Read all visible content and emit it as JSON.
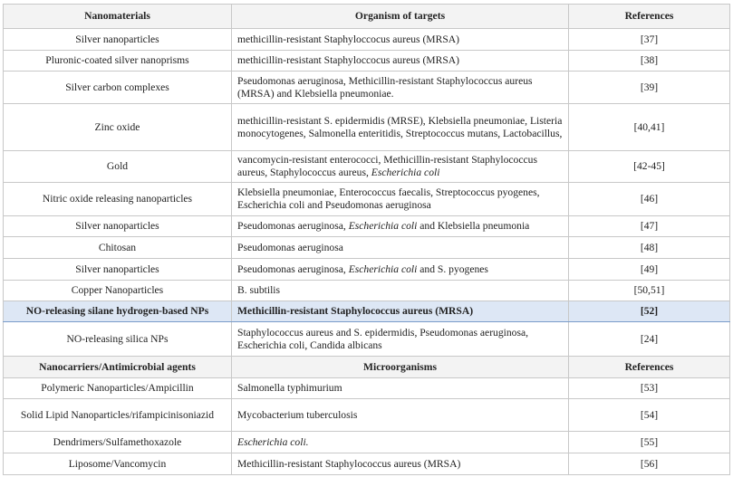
{
  "table": {
    "header": [
      "Nanomaterials",
      "Organism of targets",
      "References"
    ],
    "rows": [
      [
        "Silver nanoparticles",
        "methicillin-resistant Staphyloccocus aureus (MRSA)",
        "[37]"
      ],
      [
        "Pluronic-coated silver nanoprisms",
        "methicillin-resistant Staphyloccocus aureus (MRSA)",
        "[38]"
      ],
      [
        "Silver carbon complexes",
        "Pseudomonas aeruginosa, Methicillin-resistant Staphylococ­cus aureus (MRSA) and Klebsiella pneumoniae.",
        "[39]"
      ],
      [
        "Zinc oxide",
        "methicillin-resistant S. epidermidis (MRSE), Klebsiella pneumoni­ae, Listeria monocytogenes, Salmonella enteritidis, Streptococcus mutans, Lactobacillus,",
        "[40,41]"
      ],
      [
        "Gold",
        {
          "parts": [
            "vancomycin-resistant enterococci, Methicillin-resistant Staphylococ­cus aureus, Staphylococcus aureus, ",
            "Escherichia coli"
          ]
        },
        "[42-45]"
      ],
      [
        "Nitric oxide releasing nanoparticles",
        "Klebsiella pneumoniae, Enterococcus faecalis, Streptococcus pyo­genes, Escherichia coli and Pseudomonas aeruginosa",
        "[46]"
      ],
      [
        "Silver nanoparticles",
        {
          "parts": [
            "Pseudomonas aeruginosa, ",
            "Escherichia coli",
            " and Klebsiella pneumonia"
          ]
        },
        "[47]"
      ],
      [
        "Chitosan",
        "Pseudomonas aeruginosa",
        "[48]"
      ],
      [
        "Silver nanoparticles",
        {
          "parts": [
            "Pseudomonas aeruginosa, ",
            "Escherichia coli",
            " and S. pyogenes"
          ]
        },
        "[49]"
      ],
      [
        "Copper Nanoparticles",
        "B. subtilis",
        "[50,51]"
      ],
      [
        "NO-releasing silane hydrogen-based NPs",
        "Methicillin-resistant Staphylococcus aureus (MRSA)",
        "[52]"
      ],
      [
        "NO-releasing silica NPs",
        "Staphylococcus aureus and S. epidermidis, Pseudomonas aeruginosa, Escherichia coli, Candida albicans",
        "[24]"
      ]
    ],
    "subheader": [
      "Nanocarriers/Antimicrobial agents",
      "Microorganisms",
      "References"
    ],
    "rows2": [
      [
        "Polymeric Nanoparticles/Ampicillin",
        "Salmonella typhimurium",
        "[53]"
      ],
      [
        "Solid Lipid Nanoparticles/rifampicinisoni­azid",
        "Mycobacterium tuberculosis",
        "[54]"
      ],
      [
        "Dendrimers/Sulfamethoxazole",
        {
          "parts": [
            "",
            "Escherichia coli."
          ]
        },
        "[55]"
      ],
      [
        "Liposome/Vancomycin",
        "Methicillin-resistant Staphylococcus aureus (MRSA)",
        "[56]"
      ]
    ]
  }
}
